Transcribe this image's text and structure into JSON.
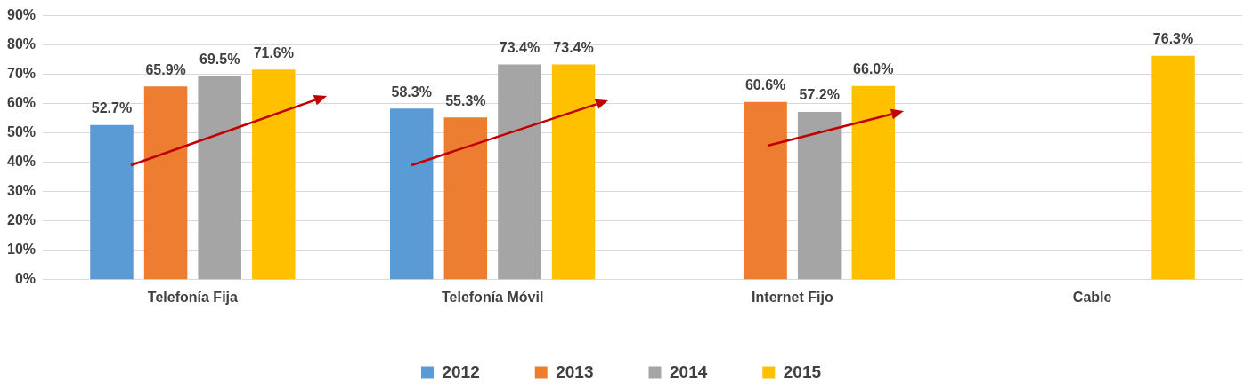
{
  "chart_data": {
    "type": "bar",
    "categories": [
      "Telefonía Fija",
      "Telefonía Móvil",
      "Internet Fijo",
      "Cable"
    ],
    "series": [
      {
        "name": "2012",
        "color": "#5b9bd5",
        "values": [
          52.7,
          58.3,
          null,
          null
        ],
        "value_labels": [
          "52.7%",
          "58.3%",
          null,
          null
        ]
      },
      {
        "name": "2013",
        "color": "#ed7d31",
        "values": [
          65.9,
          55.3,
          60.6,
          null
        ],
        "value_labels": [
          "65.9%",
          "55.3%",
          "60.6%",
          null
        ]
      },
      {
        "name": "2014",
        "color": "#a5a5a5",
        "values": [
          69.5,
          73.4,
          57.2,
          null
        ],
        "value_labels": [
          "69.5%",
          "73.4%",
          "57.2%",
          null
        ]
      },
      {
        "name": "2015",
        "color": "#ffc000",
        "values": [
          71.6,
          73.4,
          66.0,
          76.3
        ],
        "value_labels": [
          "71.6%",
          "73.4%",
          "66.0%",
          "76.3%"
        ]
      }
    ],
    "ylim": [
      0,
      90
    ],
    "yticks": [
      {
        "value": 0,
        "label": "0%"
      },
      {
        "value": 10,
        "label": "10%"
      },
      {
        "value": 20,
        "label": "20%"
      },
      {
        "value": 30,
        "label": "30%"
      },
      {
        "value": 40,
        "label": "40%"
      },
      {
        "value": 50,
        "label": "50%"
      },
      {
        "value": 60,
        "label": "60%"
      },
      {
        "value": 70,
        "label": "70%"
      },
      {
        "value": 80,
        "label": "80%"
      },
      {
        "value": 90,
        "label": "90%"
      }
    ],
    "grid": "y",
    "legend": "bottom"
  }
}
